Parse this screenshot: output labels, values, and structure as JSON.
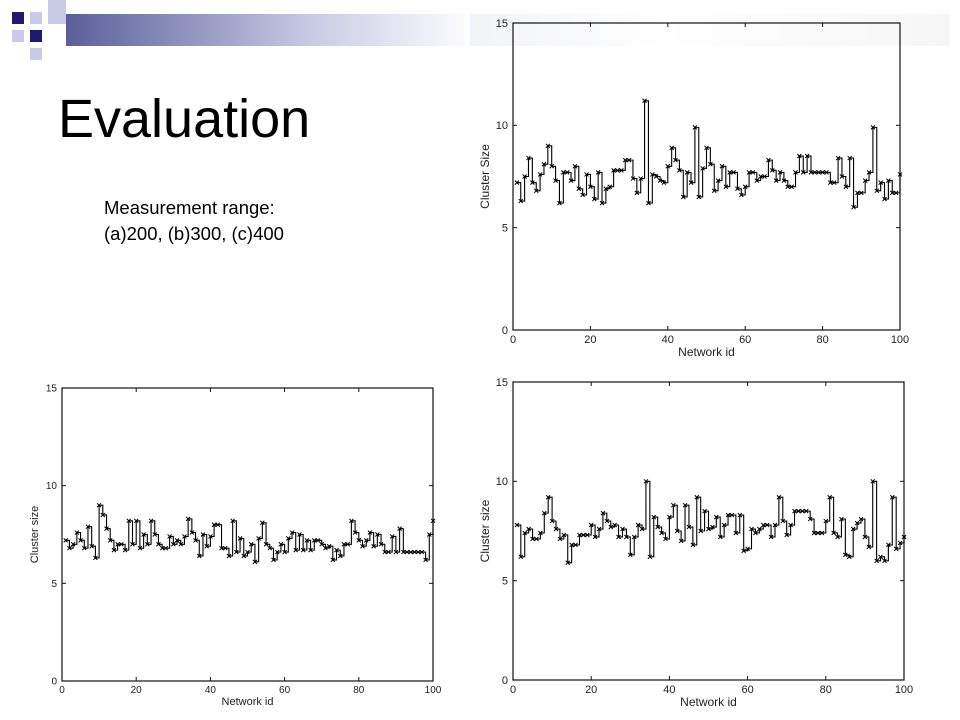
{
  "slide": {
    "title": "Evaluation",
    "note_line1": "Measurement range:",
    "note_line2": "(a)200, (b)300, (c)400",
    "accent_color": "#1f1a6e",
    "square_light_color": "#c9cbe6"
  },
  "chart_data": [
    {
      "type": "line",
      "id": "top-right",
      "xlabel": "Network id",
      "ylabel": "Cluster Size",
      "xlim": [
        0,
        100
      ],
      "ylim": [
        0,
        15
      ],
      "xticks": [
        "0",
        "20",
        "40",
        "60",
        "80",
        "100"
      ],
      "yticks": [
        "0",
        "5",
        "10",
        "15"
      ],
      "grid": false,
      "marker": "x",
      "x": [
        1,
        2,
        3,
        4,
        5,
        6,
        7,
        8,
        9,
        10,
        11,
        12,
        13,
        14,
        15,
        16,
        17,
        18,
        19,
        20,
        21,
        22,
        23,
        24,
        25,
        26,
        27,
        28,
        29,
        30,
        31,
        32,
        33,
        34,
        35,
        36,
        37,
        38,
        39,
        40,
        41,
        42,
        43,
        44,
        45,
        46,
        47,
        48,
        49,
        50,
        51,
        52,
        53,
        54,
        55,
        56,
        57,
        58,
        59,
        60,
        61,
        62,
        63,
        64,
        65,
        66,
        67,
        68,
        69,
        70,
        71,
        72,
        73,
        74,
        75,
        76,
        77,
        78,
        79,
        80,
        81,
        82,
        83,
        84,
        85,
        86,
        87,
        88,
        89,
        90,
        91,
        92,
        93,
        94,
        95,
        96,
        97,
        98,
        99,
        100
      ],
      "y": [
        7.2,
        6.3,
        7.5,
        8.4,
        7.2,
        6.8,
        7.6,
        8.1,
        9.0,
        8.0,
        7.3,
        6.2,
        7.7,
        7.7,
        7.3,
        8.0,
        6.9,
        6.6,
        7.6,
        7.0,
        6.4,
        7.7,
        6.2,
        6.9,
        7.0,
        7.8,
        7.8,
        7.8,
        8.3,
        8.3,
        7.4,
        6.7,
        7.4,
        11.2,
        6.2,
        7.6,
        7.5,
        7.3,
        7.2,
        8.0,
        8.9,
        8.3,
        7.8,
        6.5,
        7.7,
        7.2,
        9.9,
        6.5,
        7.9,
        8.9,
        8.1,
        6.8,
        7.3,
        8.0,
        7.0,
        7.7,
        7.7,
        6.9,
        6.6,
        7.0,
        7.7,
        7.7,
        7.3,
        7.5,
        7.5,
        8.3,
        7.8,
        7.3,
        7.7,
        7.3,
        7.0,
        7.0,
        7.7,
        8.5,
        7.7,
        8.5,
        7.7,
        7.7,
        7.7,
        7.7,
        7.7,
        7.2,
        7.2,
        8.4,
        7.5,
        7.0,
        8.4,
        6.0,
        6.7,
        6.7,
        7.3,
        7.7,
        9.9,
        6.8,
        7.2,
        6.4,
        7.3,
        6.7,
        6.7,
        7.6
      ]
    },
    {
      "type": "line",
      "id": "bottom-left",
      "xlabel": "Network id",
      "ylabel": "Cluster size",
      "xlim": [
        0,
        100
      ],
      "ylim": [
        0,
        15
      ],
      "xticks": [
        "0",
        "20",
        "40",
        "60",
        "80",
        "100"
      ],
      "yticks": [
        "0",
        "5",
        "10",
        "15"
      ],
      "grid": false,
      "marker": "x",
      "x": [
        1,
        2,
        3,
        4,
        5,
        6,
        7,
        8,
        9,
        10,
        11,
        12,
        13,
        14,
        15,
        16,
        17,
        18,
        19,
        20,
        21,
        22,
        23,
        24,
        25,
        26,
        27,
        28,
        29,
        30,
        31,
        32,
        33,
        34,
        35,
        36,
        37,
        38,
        39,
        40,
        41,
        42,
        43,
        44,
        45,
        46,
        47,
        48,
        49,
        50,
        51,
        52,
        53,
        54,
        55,
        56,
        57,
        58,
        59,
        60,
        61,
        62,
        63,
        64,
        65,
        66,
        67,
        68,
        69,
        70,
        71,
        72,
        73,
        74,
        75,
        76,
        77,
        78,
        79,
        80,
        81,
        82,
        83,
        84,
        85,
        86,
        87,
        88,
        89,
        90,
        91,
        92,
        93,
        94,
        95,
        96,
        97,
        98,
        99,
        100
      ],
      "y": [
        7.2,
        6.8,
        7.0,
        7.6,
        7.2,
        6.8,
        7.9,
        6.9,
        6.3,
        9.0,
        8.5,
        7.8,
        7.2,
        6.7,
        7.0,
        7.0,
        6.7,
        8.2,
        7.0,
        8.2,
        6.8,
        7.5,
        7.0,
        8.2,
        7.5,
        7.0,
        6.8,
        6.8,
        7.4,
        7.0,
        7.2,
        7.0,
        7.4,
        8.3,
        7.6,
        7.2,
        6.4,
        7.5,
        6.9,
        7.4,
        8.0,
        8.0,
        6.8,
        6.8,
        6.4,
        8.2,
        6.6,
        7.3,
        6.4,
        6.6,
        7.0,
        6.1,
        7.3,
        8.1,
        7.0,
        6.8,
        6.2,
        6.6,
        7.0,
        6.6,
        7.3,
        7.6,
        6.7,
        7.5,
        6.7,
        7.2,
        6.7,
        7.2,
        7.2,
        7.0,
        6.8,
        6.9,
        6.2,
        6.7,
        6.4,
        7.0,
        7.0,
        8.2,
        7.6,
        7.2,
        6.9,
        7.2,
        7.6,
        6.9,
        7.5,
        7.0,
        6.6,
        6.6,
        7.4,
        6.6,
        7.8,
        6.6,
        6.6,
        6.6,
        6.6,
        6.6,
        6.6,
        6.2,
        7.5,
        8.2
      ]
    },
    {
      "type": "line",
      "id": "bottom-right",
      "xlabel": "Network id",
      "ylabel": "Cluster size",
      "xlim": [
        0,
        100
      ],
      "ylim": [
        0,
        15
      ],
      "xticks": [
        "0",
        "20",
        "40",
        "60",
        "80",
        "100"
      ],
      "yticks": [
        "0",
        "5",
        "10",
        "15"
      ],
      "grid": false,
      "marker": "x",
      "x": [
        1,
        2,
        3,
        4,
        5,
        6,
        7,
        8,
        9,
        10,
        11,
        12,
        13,
        14,
        15,
        16,
        17,
        18,
        19,
        20,
        21,
        22,
        23,
        24,
        25,
        26,
        27,
        28,
        29,
        30,
        31,
        32,
        33,
        34,
        35,
        36,
        37,
        38,
        39,
        40,
        41,
        42,
        43,
        44,
        45,
        46,
        47,
        48,
        49,
        50,
        51,
        52,
        53,
        54,
        55,
        56,
        57,
        58,
        59,
        60,
        61,
        62,
        63,
        64,
        65,
        66,
        67,
        68,
        69,
        70,
        71,
        72,
        73,
        74,
        75,
        76,
        77,
        78,
        79,
        80,
        81,
        82,
        83,
        84,
        85,
        86,
        87,
        88,
        89,
        90,
        91,
        92,
        93,
        94,
        95,
        96,
        97,
        98,
        99,
        100
      ],
      "y": [
        7.8,
        6.2,
        7.4,
        7.6,
        7.1,
        7.1,
        7.4,
        8.4,
        9.2,
        8.0,
        7.6,
        7.1,
        7.3,
        5.9,
        6.8,
        6.8,
        7.3,
        7.3,
        7.3,
        7.8,
        7.2,
        7.6,
        8.4,
        8.0,
        7.7,
        7.8,
        7.2,
        7.6,
        7.2,
        6.3,
        7.2,
        7.8,
        7.6,
        10.0,
        6.2,
        8.2,
        7.7,
        7.4,
        7.1,
        8.2,
        8.8,
        7.5,
        7.0,
        8.8,
        7.7,
        6.8,
        9.2,
        7.5,
        8.5,
        7.6,
        7.7,
        8.2,
        7.2,
        7.8,
        8.3,
        8.3,
        7.4,
        8.3,
        6.5,
        6.6,
        7.6,
        7.4,
        7.6,
        7.8,
        7.8,
        7.2,
        7.8,
        9.2,
        8.0,
        7.3,
        7.8,
        8.5,
        8.5,
        8.5,
        8.5,
        8.1,
        7.4,
        7.4,
        7.4,
        8.0,
        9.2,
        7.4,
        7.2,
        8.1,
        6.3,
        6.2,
        7.6,
        7.9,
        8.1,
        7.2,
        6.7,
        10.0,
        6.0,
        6.2,
        6.0,
        6.8,
        9.2,
        6.6,
        6.9,
        7.2
      ]
    }
  ]
}
